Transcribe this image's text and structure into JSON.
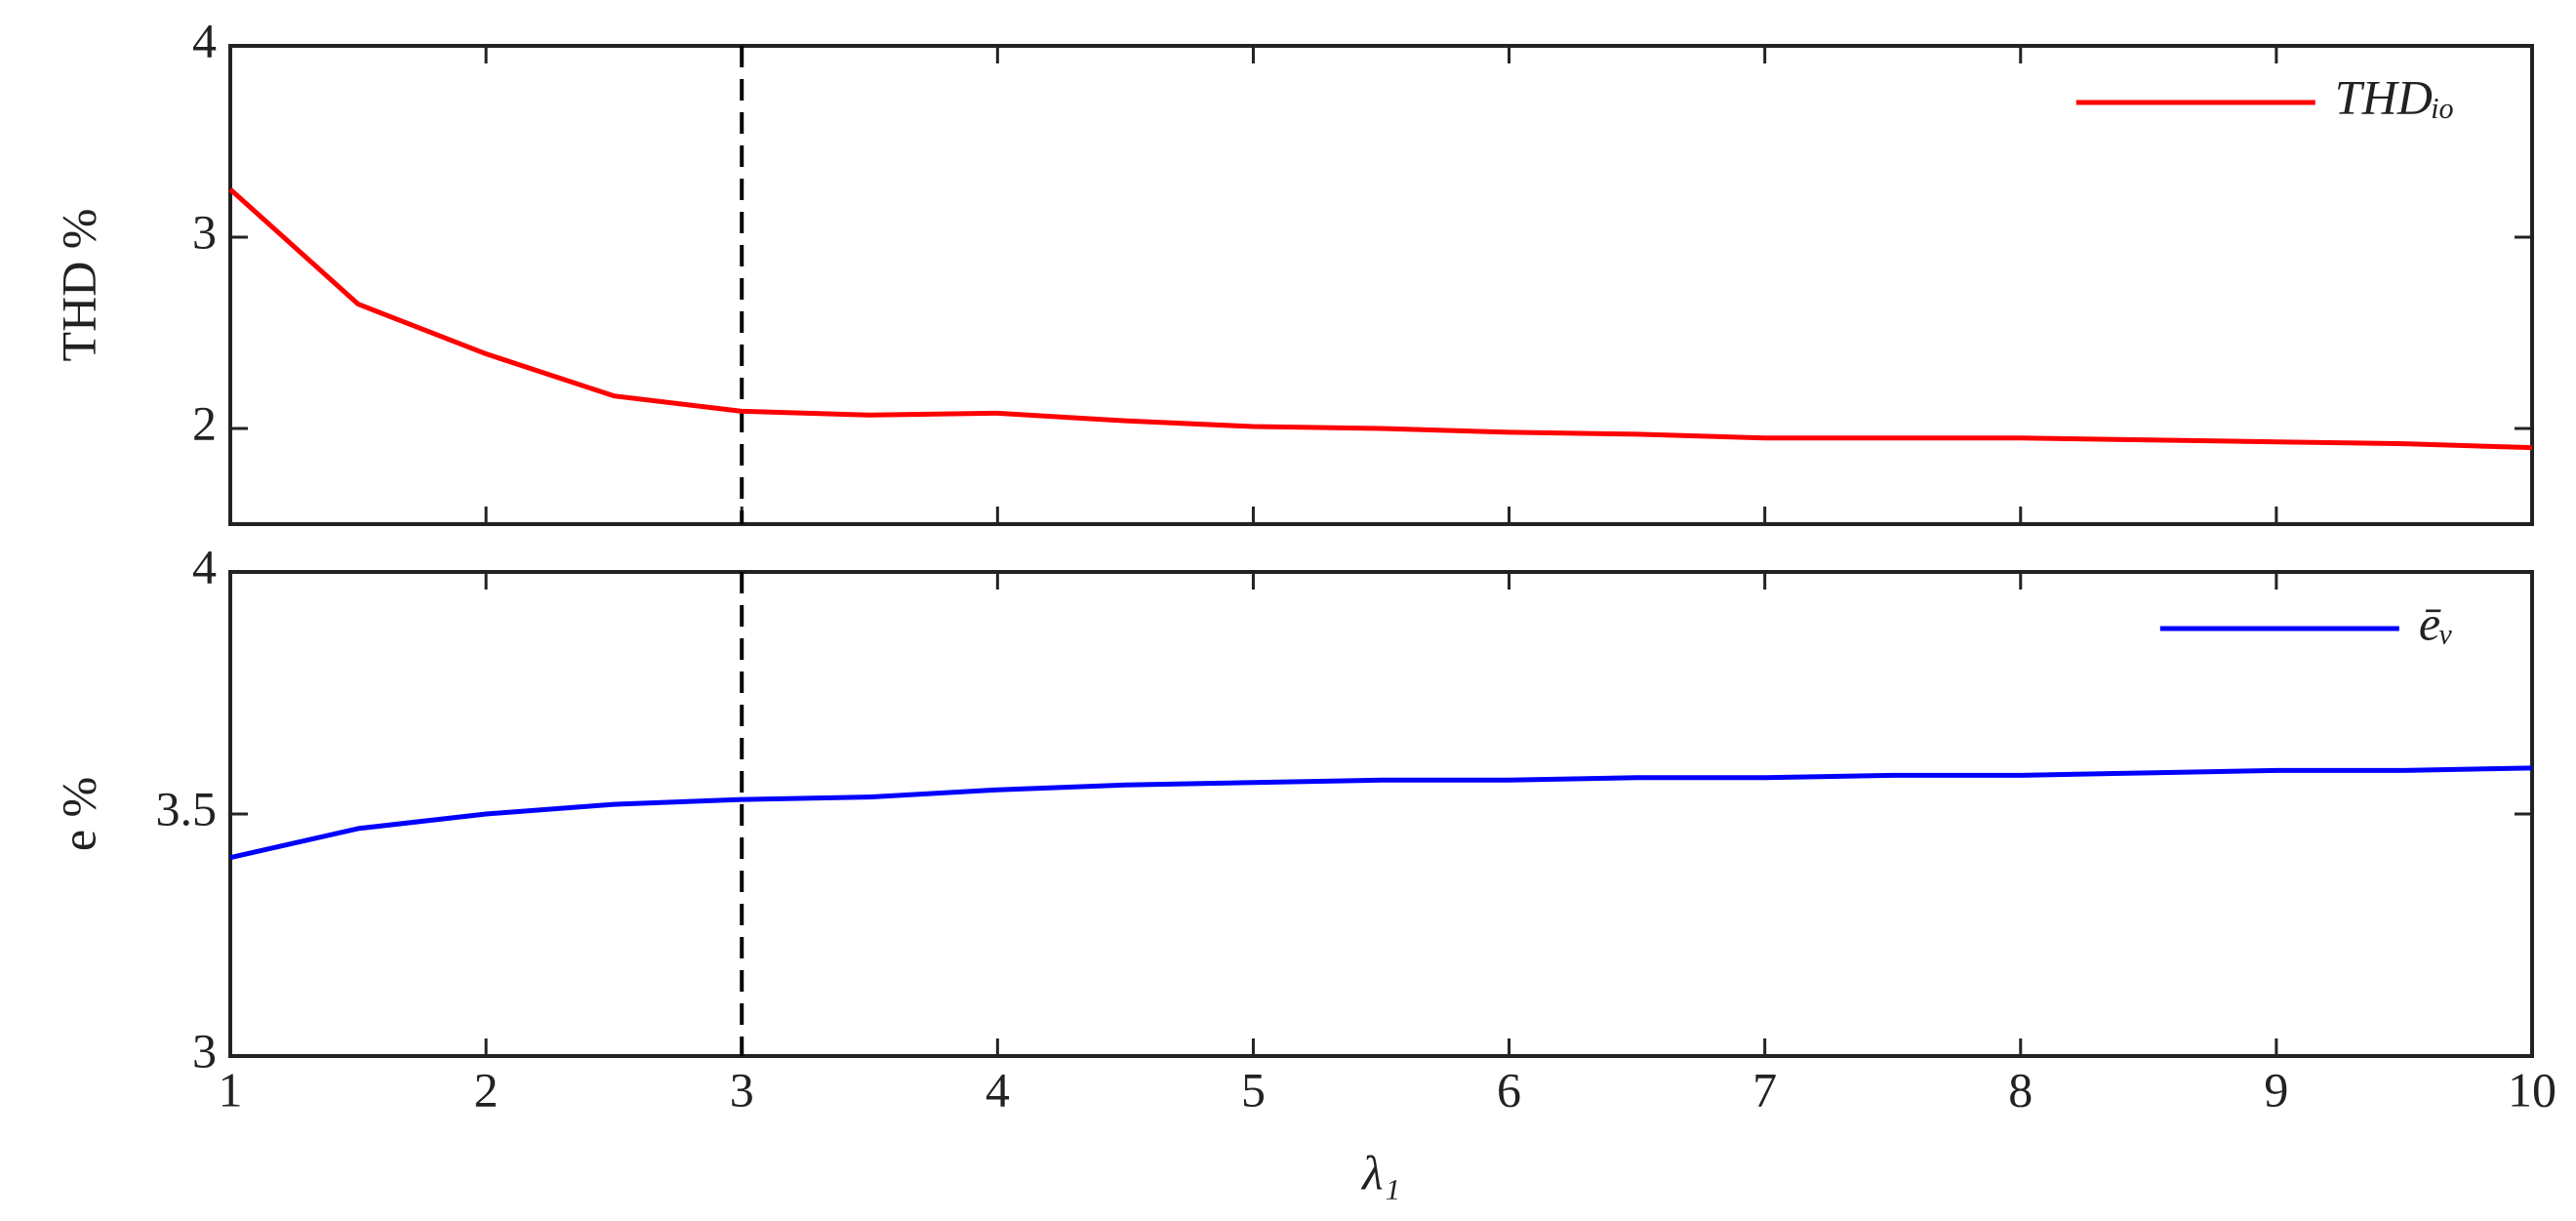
{
  "chart_data": [
    {
      "type": "line",
      "ylabel": "THD %",
      "x": [
        1,
        1.5,
        2,
        2.5,
        3,
        3.5,
        4,
        4.5,
        5,
        5.5,
        6,
        6.5,
        7,
        7.5,
        8,
        8.5,
        9,
        9.5,
        10
      ],
      "series": [
        {
          "name": "THDᵢₒ",
          "color": "#ff0000",
          "values": [
            3.25,
            2.65,
            2.39,
            2.17,
            2.09,
            2.07,
            2.08,
            2.04,
            2.01,
            2.0,
            1.98,
            1.97,
            1.95,
            1.95,
            1.95,
            1.94,
            1.93,
            1.92,
            1.9
          ]
        }
      ],
      "xlim": [
        1,
        10
      ],
      "xticks": [
        1,
        2,
        3,
        4,
        5,
        6,
        7,
        8,
        9,
        10
      ],
      "ylim": [
        1.5,
        4
      ],
      "yticks": [
        2,
        3,
        4
      ],
      "vline": 3,
      "legend": "upper right"
    },
    {
      "type": "line",
      "ylabel": "e %",
      "xlabel": "λ₁",
      "x": [
        1,
        1.5,
        2,
        2.5,
        3,
        3.5,
        4,
        4.5,
        5,
        5.5,
        6,
        6.5,
        7,
        7.5,
        8,
        8.5,
        9,
        9.5,
        10
      ],
      "series": [
        {
          "name": "ēᵥ",
          "color": "#0000ff",
          "values": [
            3.41,
            3.47,
            3.5,
            3.52,
            3.53,
            3.535,
            3.55,
            3.56,
            3.565,
            3.57,
            3.57,
            3.575,
            3.575,
            3.58,
            3.58,
            3.585,
            3.59,
            3.59,
            3.595
          ]
        }
      ],
      "xlim": [
        1,
        10
      ],
      "xticks": [
        1,
        2,
        3,
        4,
        5,
        6,
        7,
        8,
        9,
        10
      ],
      "ylim": [
        3,
        4
      ],
      "yticks": [
        3,
        {
          "value": 3.5,
          "label": "3.5"
        },
        4
      ],
      "vline": 3,
      "legend": "upper right"
    }
  ]
}
